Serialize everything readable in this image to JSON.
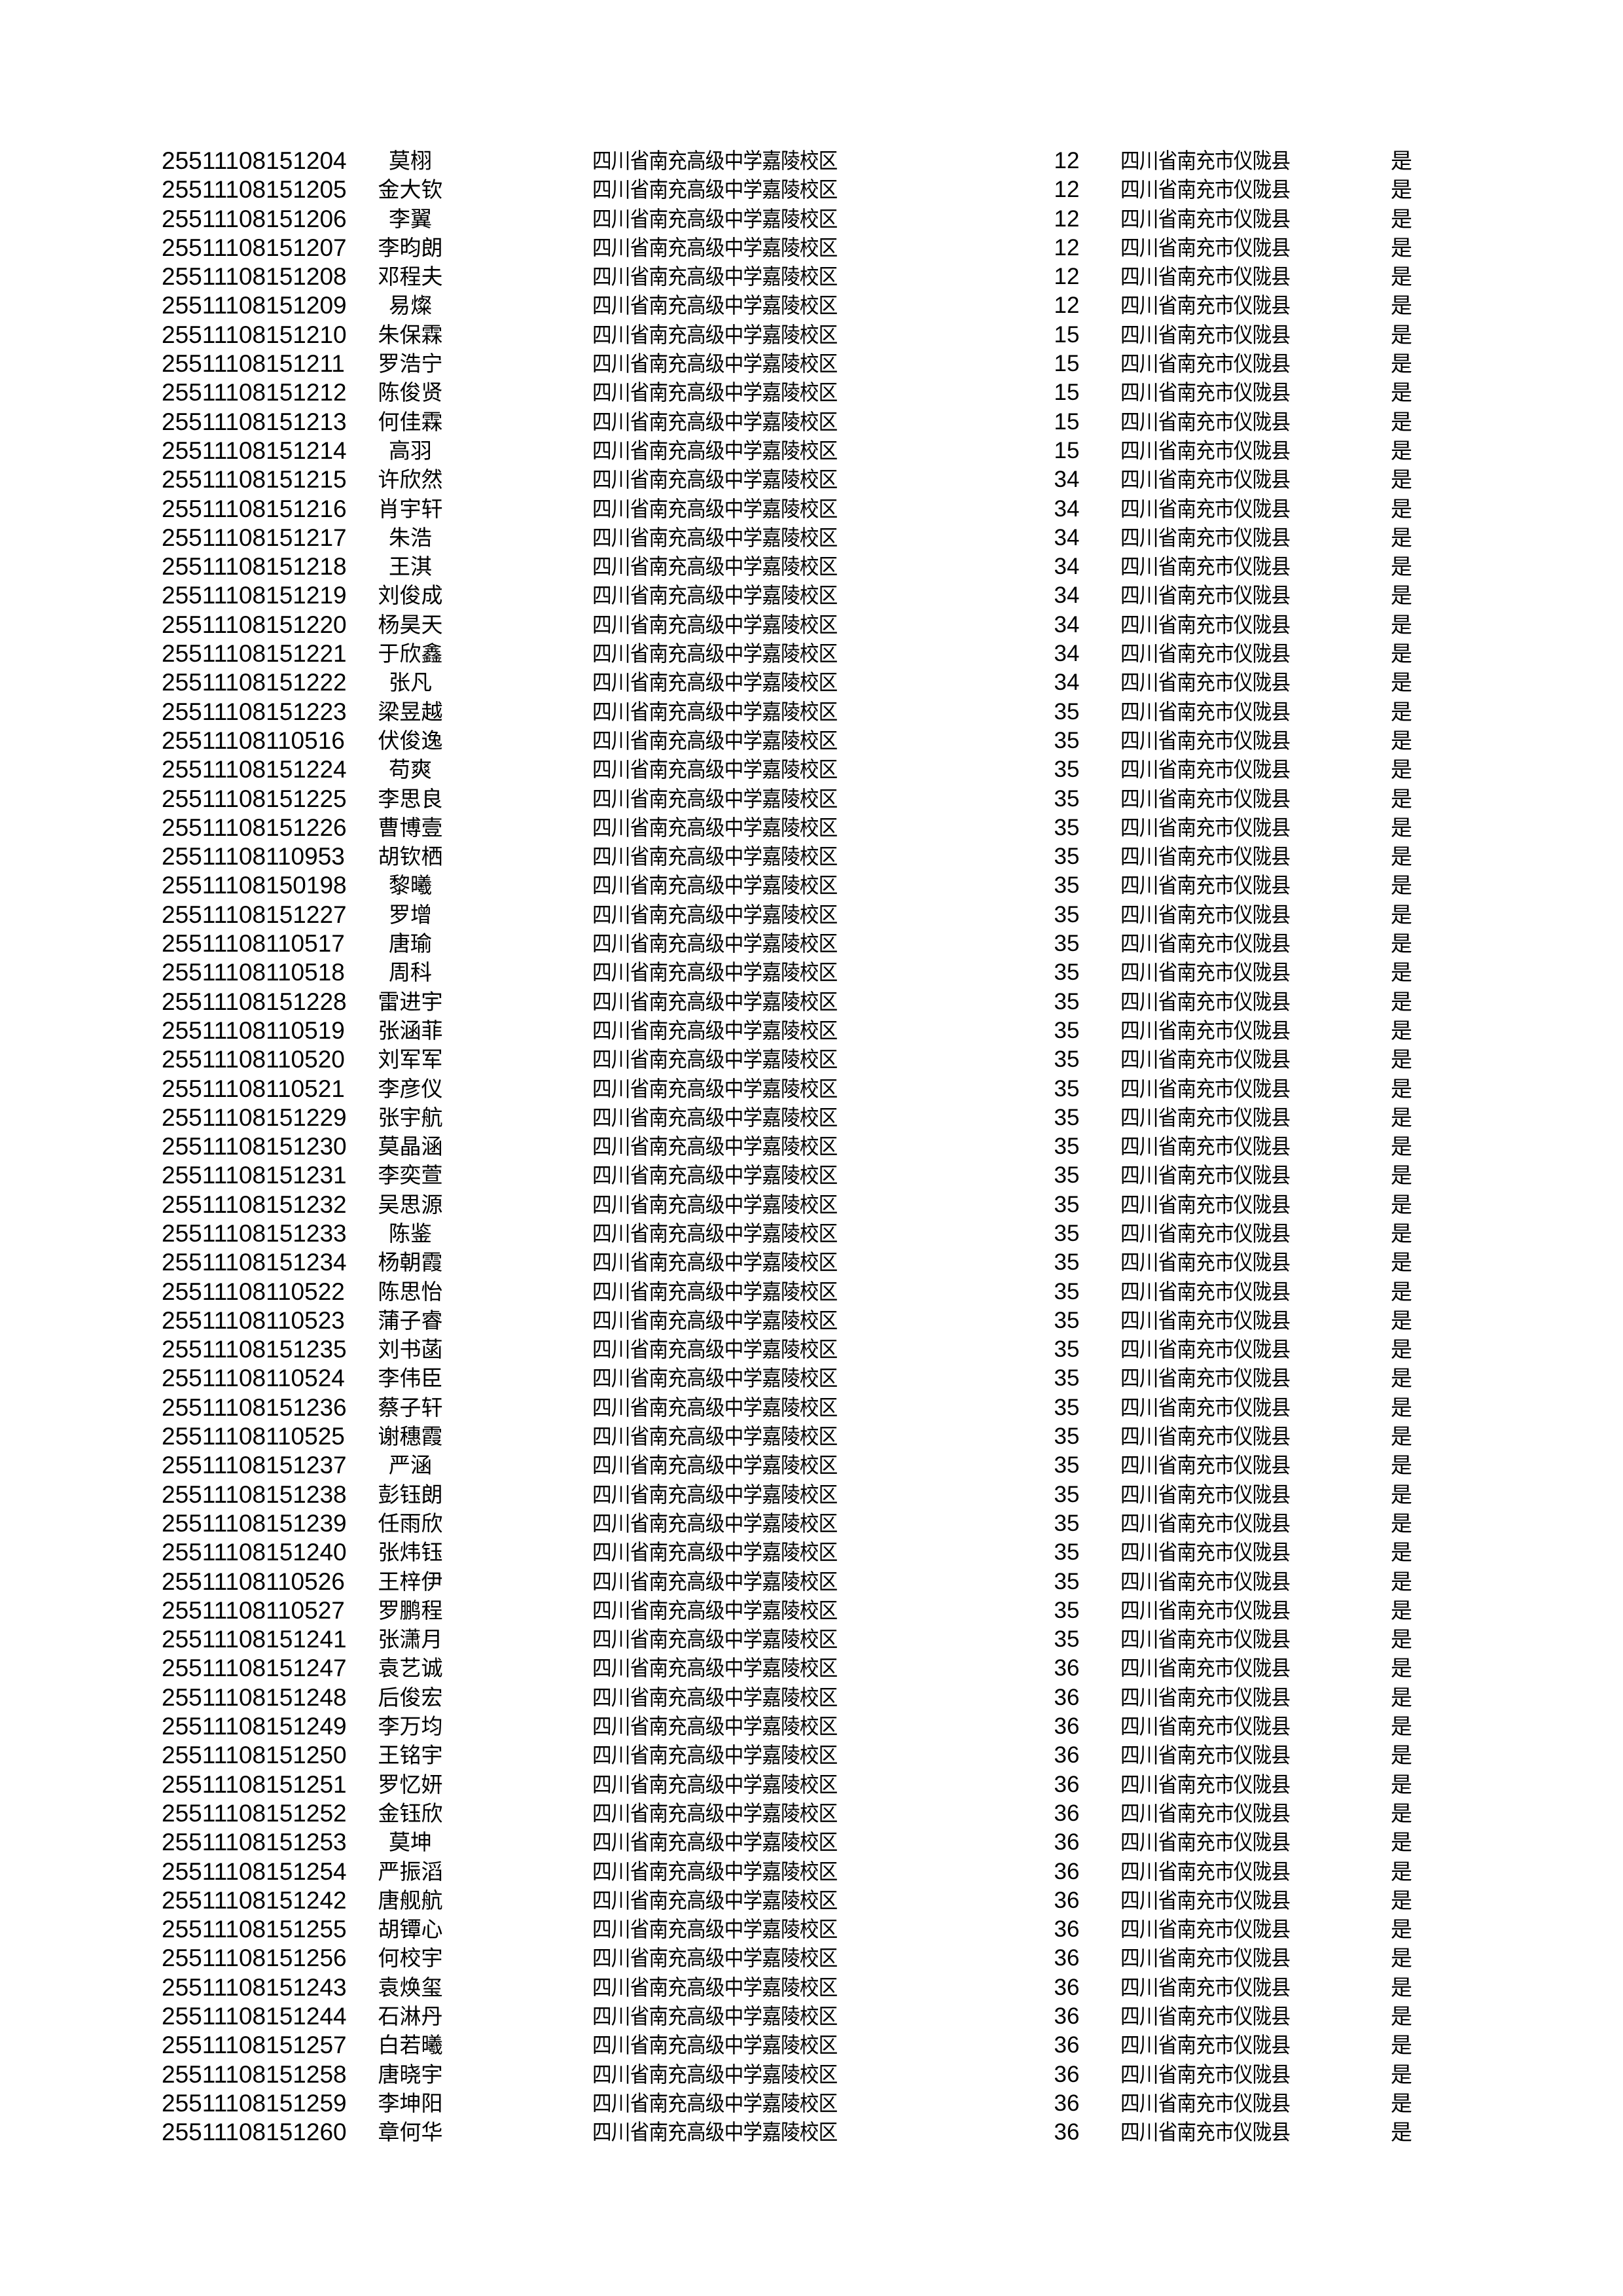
{
  "school": "四川省南充高级中学嘉陵校区",
  "county": "四川省南充市仪陇县",
  "flag": "是",
  "rows": [
    {
      "id": "25511108151204",
      "name": "莫栩",
      "class": "12"
    },
    {
      "id": "25511108151205",
      "name": "金大钦",
      "class": "12"
    },
    {
      "id": "25511108151206",
      "name": "李翼",
      "class": "12"
    },
    {
      "id": "25511108151207",
      "name": "李昀朗",
      "class": "12"
    },
    {
      "id": "25511108151208",
      "name": "邓程夫",
      "class": "12"
    },
    {
      "id": "25511108151209",
      "name": "易燦",
      "class": "12"
    },
    {
      "id": "25511108151210",
      "name": "朱保霖",
      "class": "15"
    },
    {
      "id": "25511108151211",
      "name": "罗浩宁",
      "class": "15"
    },
    {
      "id": "25511108151212",
      "name": "陈俊贤",
      "class": "15"
    },
    {
      "id": "25511108151213",
      "name": "何佳霖",
      "class": "15"
    },
    {
      "id": "25511108151214",
      "name": "高羽",
      "class": "15"
    },
    {
      "id": "25511108151215",
      "name": "许欣然",
      "class": "34"
    },
    {
      "id": "25511108151216",
      "name": "肖宇轩",
      "class": "34"
    },
    {
      "id": "25511108151217",
      "name": "朱浩",
      "class": "34"
    },
    {
      "id": "25511108151218",
      "name": "王淇",
      "class": "34"
    },
    {
      "id": "25511108151219",
      "name": "刘俊成",
      "class": "34"
    },
    {
      "id": "25511108151220",
      "name": "杨昊天",
      "class": "34"
    },
    {
      "id": "25511108151221",
      "name": "于欣鑫",
      "class": "34"
    },
    {
      "id": "25511108151222",
      "name": "张凡",
      "class": "34"
    },
    {
      "id": "25511108151223",
      "name": "梁昱越",
      "class": "35"
    },
    {
      "id": "25511108110516",
      "name": "伏俊逸",
      "class": "35"
    },
    {
      "id": "25511108151224",
      "name": "苟爽",
      "class": "35"
    },
    {
      "id": "25511108151225",
      "name": "李思良",
      "class": "35"
    },
    {
      "id": "25511108151226",
      "name": "曹博壹",
      "class": "35"
    },
    {
      "id": "25511108110953",
      "name": "胡钦栖",
      "class": "35"
    },
    {
      "id": "25511108150198",
      "name": "黎曦",
      "class": "35"
    },
    {
      "id": "25511108151227",
      "name": "罗增",
      "class": "35"
    },
    {
      "id": "25511108110517",
      "name": "唐瑜",
      "class": "35"
    },
    {
      "id": "25511108110518",
      "name": "周科",
      "class": "35"
    },
    {
      "id": "25511108151228",
      "name": "雷进宇",
      "class": "35"
    },
    {
      "id": "25511108110519",
      "name": "张涵菲",
      "class": "35"
    },
    {
      "id": "25511108110520",
      "name": "刘军军",
      "class": "35"
    },
    {
      "id": "25511108110521",
      "name": "李彦仪",
      "class": "35"
    },
    {
      "id": "25511108151229",
      "name": "张宇航",
      "class": "35"
    },
    {
      "id": "25511108151230",
      "name": "莫晶涵",
      "class": "35"
    },
    {
      "id": "25511108151231",
      "name": "李奕萱",
      "class": "35"
    },
    {
      "id": "25511108151232",
      "name": "吴思源",
      "class": "35"
    },
    {
      "id": "25511108151233",
      "name": "陈鉴",
      "class": "35"
    },
    {
      "id": "25511108151234",
      "name": "杨朝霞",
      "class": "35"
    },
    {
      "id": "25511108110522",
      "name": "陈思怡",
      "class": "35"
    },
    {
      "id": "25511108110523",
      "name": "蒲子睿",
      "class": "35"
    },
    {
      "id": "25511108151235",
      "name": "刘书菡",
      "class": "35"
    },
    {
      "id": "25511108110524",
      "name": "李伟臣",
      "class": "35"
    },
    {
      "id": "25511108151236",
      "name": "蔡子轩",
      "class": "35"
    },
    {
      "id": "25511108110525",
      "name": "谢穗霞",
      "class": "35"
    },
    {
      "id": "25511108151237",
      "name": "严涵",
      "class": "35"
    },
    {
      "id": "25511108151238",
      "name": "彭钰朗",
      "class": "35"
    },
    {
      "id": "25511108151239",
      "name": "任雨欣",
      "class": "35"
    },
    {
      "id": "25511108151240",
      "name": "张炜钰",
      "class": "35"
    },
    {
      "id": "25511108110526",
      "name": "王梓伊",
      "class": "35"
    },
    {
      "id": "25511108110527",
      "name": "罗鹏程",
      "class": "35"
    },
    {
      "id": "25511108151241",
      "name": "张潇月",
      "class": "35"
    },
    {
      "id": "25511108151247",
      "name": "袁艺诚",
      "class": "36"
    },
    {
      "id": "25511108151248",
      "name": "后俊宏",
      "class": "36"
    },
    {
      "id": "25511108151249",
      "name": "李万均",
      "class": "36"
    },
    {
      "id": "25511108151250",
      "name": "王铭宇",
      "class": "36"
    },
    {
      "id": "25511108151251",
      "name": "罗忆妍",
      "class": "36"
    },
    {
      "id": "25511108151252",
      "name": "金钰欣",
      "class": "36"
    },
    {
      "id": "25511108151253",
      "name": "莫坤",
      "class": "36"
    },
    {
      "id": "25511108151254",
      "name": "严振滔",
      "class": "36"
    },
    {
      "id": "25511108151242",
      "name": "唐舰航",
      "class": "36"
    },
    {
      "id": "25511108151255",
      "name": "胡镡心",
      "class": "36"
    },
    {
      "id": "25511108151256",
      "name": "何校宇",
      "class": "36"
    },
    {
      "id": "25511108151243",
      "name": "袁焕玺",
      "class": "36"
    },
    {
      "id": "25511108151244",
      "name": "石淋丹",
      "class": "36"
    },
    {
      "id": "25511108151257",
      "name": "白若曦",
      "class": "36"
    },
    {
      "id": "25511108151258",
      "name": "唐晓宇",
      "class": "36"
    },
    {
      "id": "25511108151259",
      "name": "李坤阳",
      "class": "36"
    },
    {
      "id": "25511108151260",
      "name": "章何华",
      "class": "36"
    }
  ]
}
